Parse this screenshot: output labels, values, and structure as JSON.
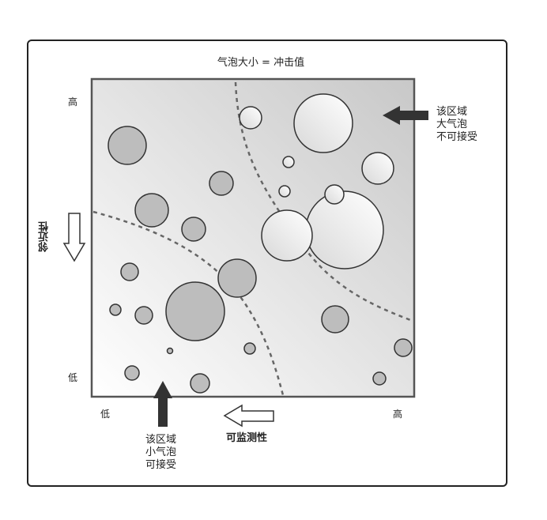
{
  "diagram": {
    "title": "气泡大小 = 冲击值",
    "y_axis": {
      "label": "邻近性",
      "high": "高",
      "low": "低"
    },
    "x_axis": {
      "label": "可监测性",
      "low": "低",
      "high": "高"
    },
    "note_big": [
      "该区域",
      "大气泡",
      "不可接受"
    ],
    "note_small": [
      "该区域",
      "小气泡",
      "可接受"
    ]
  },
  "colors": {
    "frame": "#222222",
    "bubble_fill": "#bdbdbd",
    "bubble_stroke": "#333333",
    "dashed_line": "#666666",
    "arrow_dark": "#333333"
  }
}
